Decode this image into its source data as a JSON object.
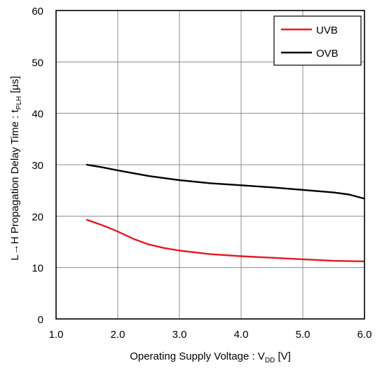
{
  "chart_data": {
    "type": "line",
    "title": "",
    "xlabel": {
      "main": "Operating Supply Voltage : V",
      "sub": "DD",
      "suffix": " [V]"
    },
    "ylabel": {
      "main": "L→H Propagation Delay Time : t",
      "sub": "PLH",
      "suffix": " [µs]"
    },
    "xlim": [
      1.0,
      6.0
    ],
    "ylim": [
      0,
      60
    ],
    "xticks": [
      1.0,
      2.0,
      3.0,
      4.0,
      5.0,
      6.0
    ],
    "xtick_labels": [
      "1.0",
      "2.0",
      "3.0",
      "4.0",
      "5.0",
      "6.0"
    ],
    "yticks": [
      0,
      10,
      20,
      30,
      40,
      50,
      60
    ],
    "ytick_labels": [
      "0",
      "10",
      "20",
      "30",
      "40",
      "50",
      "60"
    ],
    "grid": true,
    "legend_position": "top-right",
    "series": [
      {
        "name": "UVB",
        "color": "#e8191f",
        "x": [
          1.5,
          1.8,
          2.0,
          2.25,
          2.5,
          2.75,
          3.0,
          3.5,
          4.0,
          4.5,
          5.0,
          5.5,
          6.0
        ],
        "y": [
          19.3,
          18.0,
          17.0,
          15.6,
          14.5,
          13.8,
          13.3,
          12.6,
          12.2,
          11.9,
          11.6,
          11.3,
          11.2
        ]
      },
      {
        "name": "OVB",
        "color": "#000000",
        "x": [
          1.5,
          1.75,
          2.0,
          2.5,
          3.0,
          3.5,
          4.0,
          4.5,
          5.0,
          5.5,
          5.75,
          6.0
        ],
        "y": [
          30.0,
          29.5,
          28.9,
          27.8,
          27.0,
          26.4,
          26.0,
          25.6,
          25.1,
          24.6,
          24.2,
          23.4
        ]
      }
    ]
  }
}
